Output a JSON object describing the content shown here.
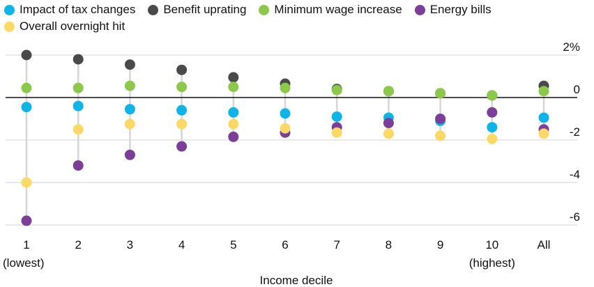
{
  "legend_rows": [
    [
      {
        "name": "Impact of tax changes",
        "color": "#0eb4e6"
      },
      {
        "name": "Benefit uprating",
        "color": "#4a4a4a"
      },
      {
        "name": "Minimum wage increase",
        "color": "#8cc84b"
      },
      {
        "name": "Energy bills",
        "color": "#7b3f98"
      }
    ],
    [
      {
        "name": "Overall overnight hit",
        "color": "#fcd967"
      }
    ]
  ],
  "chart_data": {
    "type": "scatter",
    "title": "",
    "xlabel": "Income decile",
    "ylabel": "",
    "categories": [
      "1",
      "2",
      "3",
      "4",
      "5",
      "6",
      "7",
      "8",
      "9",
      "10",
      "All"
    ],
    "category_sublabels": {
      "1": "(lowest)",
      "10": "(highest)"
    },
    "y_ticks": [
      2,
      0,
      -2,
      -4,
      -6
    ],
    "y_tick_labels": [
      "2%",
      "0",
      "-2",
      "-4",
      "-6"
    ],
    "ylim": [
      -6.5,
      2.5
    ],
    "grid": true,
    "legend_position": "top",
    "series": [
      {
        "name": "Impact of tax changes",
        "color": "#0eb4e6",
        "values": [
          -0.45,
          -0.4,
          -0.55,
          -0.6,
          -0.7,
          -0.75,
          -0.9,
          -0.95,
          -1.1,
          -1.4,
          -0.95
        ]
      },
      {
        "name": "Benefit uprating",
        "color": "#4a4a4a",
        "values": [
          2.0,
          1.8,
          1.55,
          1.3,
          0.95,
          0.65,
          0.4,
          0.3,
          0.2,
          0.1,
          0.55
        ]
      },
      {
        "name": "Minimum wage increase",
        "color": "#8cc84b",
        "values": [
          0.45,
          0.45,
          0.55,
          0.5,
          0.5,
          0.45,
          0.35,
          0.3,
          0.2,
          0.1,
          0.3
        ]
      },
      {
        "name": "Energy bills",
        "color": "#7b3f98",
        "values": [
          -5.8,
          -3.2,
          -2.7,
          -2.3,
          -1.85,
          -1.65,
          -1.4,
          -1.2,
          -1.0,
          -0.7,
          -1.5
        ]
      },
      {
        "name": "Overall overnight hit",
        "color": "#fcd967",
        "values": [
          -4.0,
          -1.5,
          -1.25,
          -1.25,
          -1.25,
          -1.45,
          -1.65,
          -1.7,
          -1.8,
          -1.95,
          -1.7
        ]
      }
    ]
  }
}
